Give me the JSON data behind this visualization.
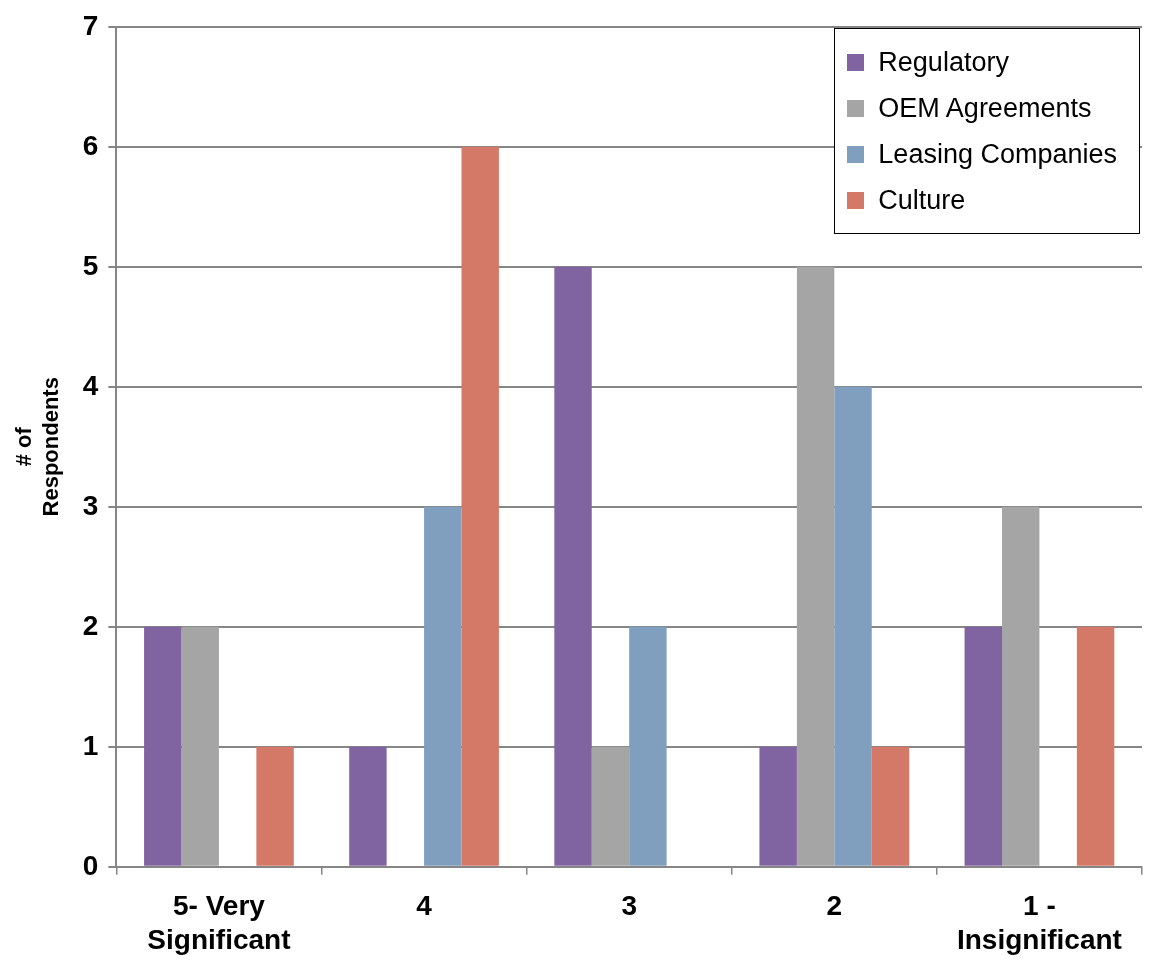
{
  "chart_data": {
    "type": "bar",
    "ylabel": "# of\nRespondents",
    "categories": [
      "5- Very\nSignificant",
      "4",
      "3",
      "2",
      "1 -\nInsignificant"
    ],
    "series": [
      {
        "name": "Regulatory",
        "color": "#8064a2",
        "values": [
          2,
          1,
          5,
          1,
          2
        ]
      },
      {
        "name": "OEM Agreements",
        "color": "#a5a5a5",
        "values": [
          2,
          0,
          1,
          5,
          3
        ]
      },
      {
        "name": "Leasing Companies",
        "color": "#809fbe",
        "values": [
          0,
          3,
          2,
          4,
          0
        ]
      },
      {
        "name": "Culture",
        "color": "#d47868",
        "values": [
          1,
          6,
          0,
          1,
          2
        ]
      }
    ],
    "ylim": [
      0,
      7
    ],
    "yticks": [
      0,
      1,
      2,
      3,
      4,
      5,
      6,
      7
    ],
    "grid": "y",
    "legend": "top right"
  }
}
